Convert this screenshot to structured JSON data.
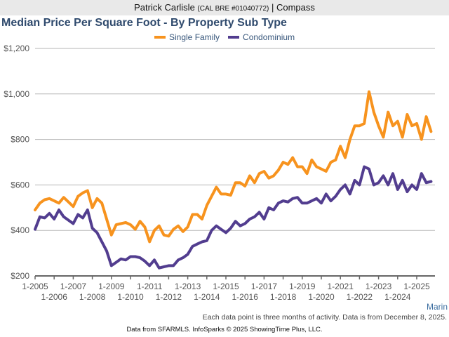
{
  "header": {
    "agent_name": "Patrick Carlisle",
    "license": "(CAL BRE #01040772)",
    "separator": " | ",
    "brokerage": "Compass"
  },
  "region_label": "Marin",
  "footnote": "Each data point is three months of activity. Data is from December 8, 2025.",
  "source": "Data from SFARMLS. InfoSparks © 2025 ShowingTime Plus, LLC.",
  "colors": {
    "single_family": "#f7931e",
    "condominium": "#523d8f",
    "grid": "#b5b5b5",
    "axis": "#666666"
  },
  "chart_data": {
    "type": "line",
    "title": "Median Price Per Square Foot - By Property Sub Type",
    "xlabel": "",
    "ylabel": "",
    "ylim": [
      200,
      1200
    ],
    "xlim": [
      2005.0,
      2025.95
    ],
    "yticks": [
      200,
      400,
      600,
      800,
      1000,
      1200
    ],
    "ytick_labels": [
      "$200",
      "$400",
      "$600",
      "$800",
      "$1,000",
      "$1,200"
    ],
    "xticks_row1": [
      "1-2005",
      "1-2007",
      "1-2009",
      "1-2011",
      "1-2013",
      "1-2015",
      "1-2017",
      "1-2019",
      "1-2021",
      "1-2023",
      "1-2025"
    ],
    "xticks_row2": [
      "1-2006",
      "1-2008",
      "1-2010",
      "1-2012",
      "1-2014",
      "1-2016",
      "1-2018",
      "1-2020",
      "1-2022",
      "1-2024"
    ],
    "grid": true,
    "legend_position": "top-center",
    "series": [
      {
        "name": "Single Family",
        "x": [
          2005.0,
          2005.25,
          2005.5,
          2005.75,
          2006.0,
          2006.25,
          2006.5,
          2006.75,
          2007.0,
          2007.25,
          2007.5,
          2007.75,
          2008.0,
          2008.25,
          2008.5,
          2008.75,
          2009.0,
          2009.25,
          2009.5,
          2009.75,
          2010.0,
          2010.25,
          2010.5,
          2010.75,
          2011.0,
          2011.25,
          2011.5,
          2011.75,
          2012.0,
          2012.25,
          2012.5,
          2012.75,
          2013.0,
          2013.25,
          2013.5,
          2013.75,
          2014.0,
          2014.25,
          2014.5,
          2014.75,
          2015.0,
          2015.25,
          2015.5,
          2015.75,
          2016.0,
          2016.25,
          2016.5,
          2016.75,
          2017.0,
          2017.25,
          2017.5,
          2017.75,
          2018.0,
          2018.25,
          2018.5,
          2018.75,
          2019.0,
          2019.25,
          2019.5,
          2019.75,
          2020.0,
          2020.25,
          2020.5,
          2020.75,
          2021.0,
          2021.25,
          2021.5,
          2021.75,
          2022.0,
          2022.25,
          2022.5,
          2022.75,
          2023.0,
          2023.25,
          2023.5,
          2023.75,
          2024.0,
          2024.25,
          2024.5,
          2024.75,
          2025.0,
          2025.25,
          2025.5,
          2025.75
        ],
        "values": [
          490,
          520,
          535,
          540,
          530,
          520,
          545,
          525,
          505,
          550,
          565,
          575,
          500,
          540,
          520,
          450,
          380,
          425,
          430,
          435,
          425,
          405,
          440,
          415,
          350,
          400,
          420,
          380,
          375,
          405,
          420,
          395,
          415,
          470,
          470,
          450,
          510,
          550,
          590,
          560,
          560,
          555,
          610,
          610,
          595,
          640,
          610,
          650,
          660,
          630,
          640,
          665,
          700,
          690,
          720,
          680,
          680,
          650,
          710,
          680,
          670,
          660,
          700,
          710,
          770,
          720,
          800,
          860,
          860,
          870,
          1010,
          920,
          860,
          810,
          920,
          860,
          880,
          810,
          910,
          860,
          870,
          800,
          900,
          835
        ]
      },
      {
        "name": "Condominium",
        "x": [
          2005.0,
          2005.25,
          2005.5,
          2005.75,
          2006.0,
          2006.25,
          2006.5,
          2006.75,
          2007.0,
          2007.25,
          2007.5,
          2007.75,
          2008.0,
          2008.25,
          2008.5,
          2008.75,
          2009.0,
          2009.25,
          2009.5,
          2009.75,
          2010.0,
          2010.25,
          2010.5,
          2010.75,
          2011.0,
          2011.25,
          2011.5,
          2011.75,
          2012.0,
          2012.25,
          2012.5,
          2012.75,
          2013.0,
          2013.25,
          2013.5,
          2013.75,
          2014.0,
          2014.25,
          2014.5,
          2014.75,
          2015.0,
          2015.25,
          2015.5,
          2015.75,
          2016.0,
          2016.25,
          2016.5,
          2016.75,
          2017.0,
          2017.25,
          2017.5,
          2017.75,
          2018.0,
          2018.25,
          2018.5,
          2018.75,
          2019.0,
          2019.25,
          2019.5,
          2019.75,
          2020.0,
          2020.25,
          2020.5,
          2020.75,
          2021.0,
          2021.25,
          2021.5,
          2021.75,
          2022.0,
          2022.25,
          2022.5,
          2022.75,
          2023.0,
          2023.25,
          2023.5,
          2023.75,
          2024.0,
          2024.25,
          2024.5,
          2024.75,
          2025.0,
          2025.25,
          2025.5,
          2025.75
        ],
        "values": [
          405,
          460,
          455,
          475,
          450,
          490,
          460,
          445,
          430,
          470,
          455,
          490,
          410,
          390,
          350,
          310,
          245,
          260,
          275,
          270,
          285,
          285,
          280,
          265,
          245,
          270,
          235,
          240,
          245,
          245,
          270,
          280,
          295,
          330,
          340,
          350,
          355,
          400,
          420,
          405,
          390,
          410,
          440,
          420,
          430,
          450,
          460,
          480,
          450,
          500,
          490,
          520,
          530,
          525,
          540,
          545,
          520,
          520,
          530,
          540,
          520,
          560,
          530,
          550,
          580,
          600,
          560,
          620,
          600,
          680,
          670,
          600,
          610,
          640,
          600,
          650,
          580,
          620,
          570,
          600,
          580,
          650,
          610,
          615
        ]
      }
    ]
  }
}
